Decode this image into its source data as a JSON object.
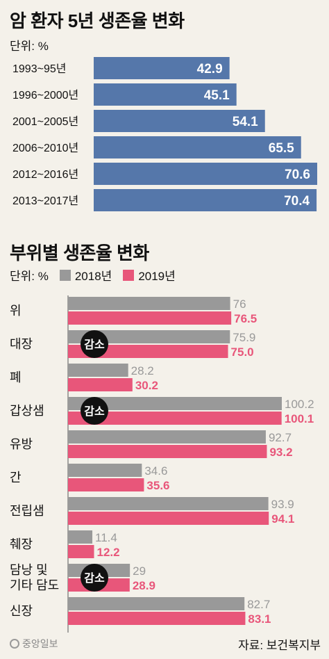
{
  "chart_data": [
    {
      "type": "bar",
      "title": "암 환자 5년 생존율 변화",
      "unit": "단위: %",
      "categories": [
        "1993~95년",
        "1996~2000년",
        "2001~2005년",
        "2006~2010년",
        "2012~2016년",
        "2013~2017년"
      ],
      "values": [
        42.9,
        45.1,
        54.1,
        65.5,
        70.6,
        70.4
      ],
      "value_labels": [
        "42.9",
        "45.1",
        "54.1",
        "65.5",
        "70.6",
        "70.4"
      ],
      "color": "#5577aa"
    },
    {
      "type": "bar",
      "title": "부위별 생존율 변화",
      "unit": "단위: %",
      "categories": [
        "위",
        "대장",
        "폐",
        "갑상샘",
        "유방",
        "간",
        "전립샘",
        "췌장",
        "담낭 및\n기타 담도",
        "신장"
      ],
      "series": [
        {
          "name": "2018년",
          "color": "#999999",
          "values": [
            76,
            75.9,
            28.2,
            100.2,
            92.7,
            34.6,
            93.9,
            11.4,
            29,
            82.7
          ],
          "labels": [
            "76",
            "75.9",
            "28.2",
            "100.2",
            "92.7",
            "34.6",
            "93.9",
            "11.4",
            "29",
            "82.7"
          ]
        },
        {
          "name": "2019년",
          "color": "#e8567a",
          "values": [
            76.5,
            75.0,
            30.2,
            100.1,
            93.2,
            35.6,
            94.1,
            12.2,
            28.9,
            83.1
          ],
          "labels": [
            "76.5",
            "75.0",
            "30.2",
            "100.1",
            "93.2",
            "35.6",
            "94.1",
            "12.2",
            "28.9",
            "83.1"
          ]
        }
      ],
      "annotations": [
        {
          "category": "대장",
          "text": "감소"
        },
        {
          "category": "갑상샘",
          "text": "감소"
        },
        {
          "category": "담낭 및\n기타 담도",
          "text": "감소"
        }
      ]
    }
  ],
  "footer": {
    "logo": "중앙일보",
    "source": "자료: 보건복지부"
  }
}
